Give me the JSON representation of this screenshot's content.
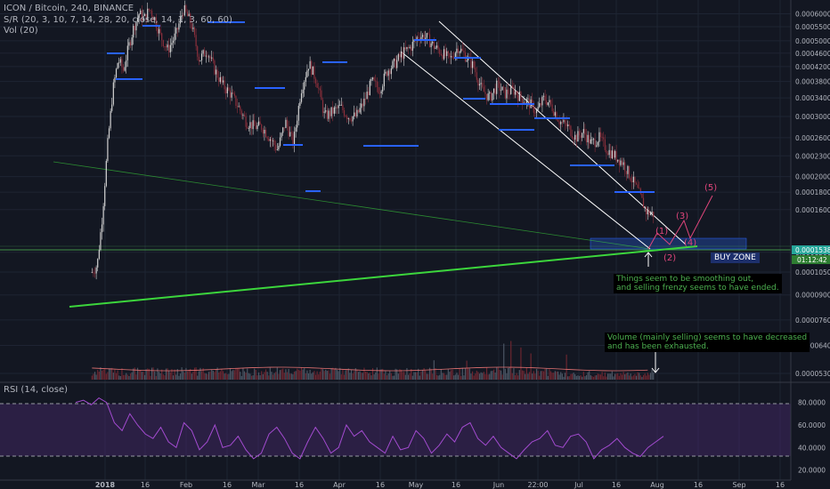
{
  "header": {
    "title": "ICON / Bitcoin, 240, BINANCE",
    "indicator1": "S/R (20, 3, 10, 7, 14, 28, 20, close, 14, 1, 3, 60, 60)",
    "indicator2": "Vol (20)"
  },
  "rsi_panel": {
    "title": "RSI (14, close)"
  },
  "annotations": {
    "note1_line1": "Things seem to be smoothing out,",
    "note1_line2": "and selling frenzy seems to have ended.",
    "note2_line1": "Volume (mainly selling) seems to have decreased",
    "note2_line2": "and has been exhausted.",
    "buy_zone": "BUY ZONE",
    "wave_labels": [
      "(1)",
      "(2)",
      "(3)",
      "(4)",
      "(5)"
    ]
  },
  "price_badges": {
    "current": "0.0001538",
    "timer": "01:12:42"
  },
  "colors": {
    "background": "#131722",
    "candle_up": "#d3d3d3",
    "candle_down": "#8b2f3b",
    "support_line": "#3cd63c",
    "channel": "#ffffff",
    "sr_level": "#2962ff",
    "buy_zone": "#1e3a78",
    "rsi_line": "#9c27b0",
    "wave_labels": "#e0457b"
  },
  "chart_data": [
    {
      "type": "line",
      "title": "ICON / Bitcoin, 240, BINANCE",
      "x_ticks": [
        "2018",
        "16",
        "Feb",
        "16",
        "Mar",
        "16",
        "Apr",
        "16",
        "May",
        "16",
        "Jun",
        "22:00",
        "Jul",
        "16",
        "Aug",
        "16",
        "Sep",
        "16"
      ],
      "y_ticks": [
        "0.0006000",
        "0.0005500",
        "0.0005000",
        "0.0004600",
        "0.0004200",
        "0.0003800",
        "0.0003400",
        "0.0003000",
        "0.0002600",
        "0.0002300",
        "0.0002000",
        "0.0001800",
        "0.0001600",
        "0.0001200",
        "0.0001050",
        "0.0000900",
        "0.0000760",
        "0.0000640",
        "0.0000530"
      ],
      "ylim": [
        5.3e-05,
        0.00062
      ],
      "y_scale": "log",
      "series": [
        {
          "name": "",
          "x": [
            "2017-12-27",
            "2017-12-29",
            "2017-12-31",
            "2018-01-02",
            "2018-01-04",
            "2018-01-06",
            "2018-01-08",
            "2018-01-10",
            "2018-01-12",
            "2018-01-14",
            "2018-01-16",
            "2018-01-18",
            "2018-01-20",
            "2018-01-22",
            "2018-01-25",
            "2018-01-28",
            "2018-01-31",
            "2018-02-03",
            "2018-02-06",
            "2018-02-09",
            "2018-02-12",
            "2018-02-15",
            "2018-02-18",
            "2018-02-21",
            "2018-02-24",
            "2018-02-27",
            "2018-03-02",
            "2018-03-05",
            "2018-03-08",
            "2018-03-11",
            "2018-03-14",
            "2018-03-17",
            "2018-03-20",
            "2018-03-23",
            "2018-03-26",
            "2018-03-29",
            "2018-04-01",
            "2018-04-04",
            "2018-04-07",
            "2018-04-10",
            "2018-04-13",
            "2018-04-16",
            "2018-04-19",
            "2018-04-22",
            "2018-04-25",
            "2018-04-28",
            "2018-05-01",
            "2018-05-04",
            "2018-05-07",
            "2018-05-10",
            "2018-05-13",
            "2018-05-16",
            "2018-05-19",
            "2018-05-22",
            "2018-05-25",
            "2018-05-28",
            "2018-05-31",
            "2018-06-03",
            "2018-06-06",
            "2018-06-09",
            "2018-06-12",
            "2018-06-15",
            "2018-06-18",
            "2018-06-21",
            "2018-06-24",
            "2018-06-27",
            "2018-06-30",
            "2018-07-03",
            "2018-07-06",
            "2018-07-09",
            "2018-07-12",
            "2018-07-15",
            "2018-07-18",
            "2018-07-21",
            "2018-07-24",
            "2018-07-27",
            "2018-07-30"
          ],
          "y": [
            0.000105,
            0.00011,
            0.000155,
            0.00025,
            0.00036,
            0.00044,
            0.00041,
            0.00048,
            0.00055,
            0.0006,
            0.00058,
            0.00062,
            0.00058,
            0.00052,
            0.00047,
            0.00052,
            0.00062,
            0.00056,
            0.00044,
            0.00047,
            0.00041,
            0.00037,
            0.00035,
            0.00032,
            0.00029,
            0.00028,
            0.00028,
            0.00026,
            0.00024,
            0.00029,
            0.00025,
            0.00036,
            0.00043,
            0.00038,
            0.0003,
            0.00031,
            0.00032,
            0.0003,
            0.0003,
            0.00033,
            0.00038,
            0.00036,
            0.00041,
            0.00043,
            0.00046,
            0.00048,
            0.00052,
            0.00051,
            0.00048,
            0.00046,
            0.00044,
            0.00048,
            0.00045,
            0.00042,
            0.00036,
            0.00034,
            0.00037,
            0.00035,
            0.00036,
            0.00034,
            0.00033,
            0.00031,
            0.00034,
            0.00032,
            0.00029,
            0.00028,
            0.00026,
            0.00027,
            0.00025,
            0.00026,
            0.00024,
            0.00023,
            0.00022,
            0.0002,
            0.00018,
            0.000158,
            0.000155
          ]
        }
      ]
    },
    {
      "type": "bar",
      "title": "Vol (20)",
      "series": [
        {
          "name": "",
          "values": []
        }
      ]
    },
    {
      "type": "line",
      "title": "RSI (14, close)",
      "y_ticks": [
        "80.0000",
        "60.0000",
        "40.0000",
        "20.0000"
      ],
      "ylim": [
        15,
        90
      ],
      "series": [
        {
          "name": "",
          "values": [
            80,
            82,
            78,
            84,
            80,
            62,
            55,
            70,
            60,
            52,
            48,
            58,
            45,
            40,
            62,
            55,
            38,
            45,
            60,
            40,
            42,
            50,
            38,
            30,
            35,
            52,
            58,
            48,
            35,
            30,
            45,
            58,
            48,
            35,
            40,
            60,
            50,
            55,
            45,
            40,
            35,
            50,
            38,
            40,
            55,
            48,
            35,
            42,
            52,
            45,
            58,
            62,
            48,
            42,
            50,
            40,
            35,
            30,
            38,
            45,
            48,
            55,
            42,
            40,
            50,
            52,
            45,
            30,
            38,
            42,
            48,
            40,
            35,
            32,
            40,
            45,
            50
          ]
        }
      ]
    }
  ]
}
